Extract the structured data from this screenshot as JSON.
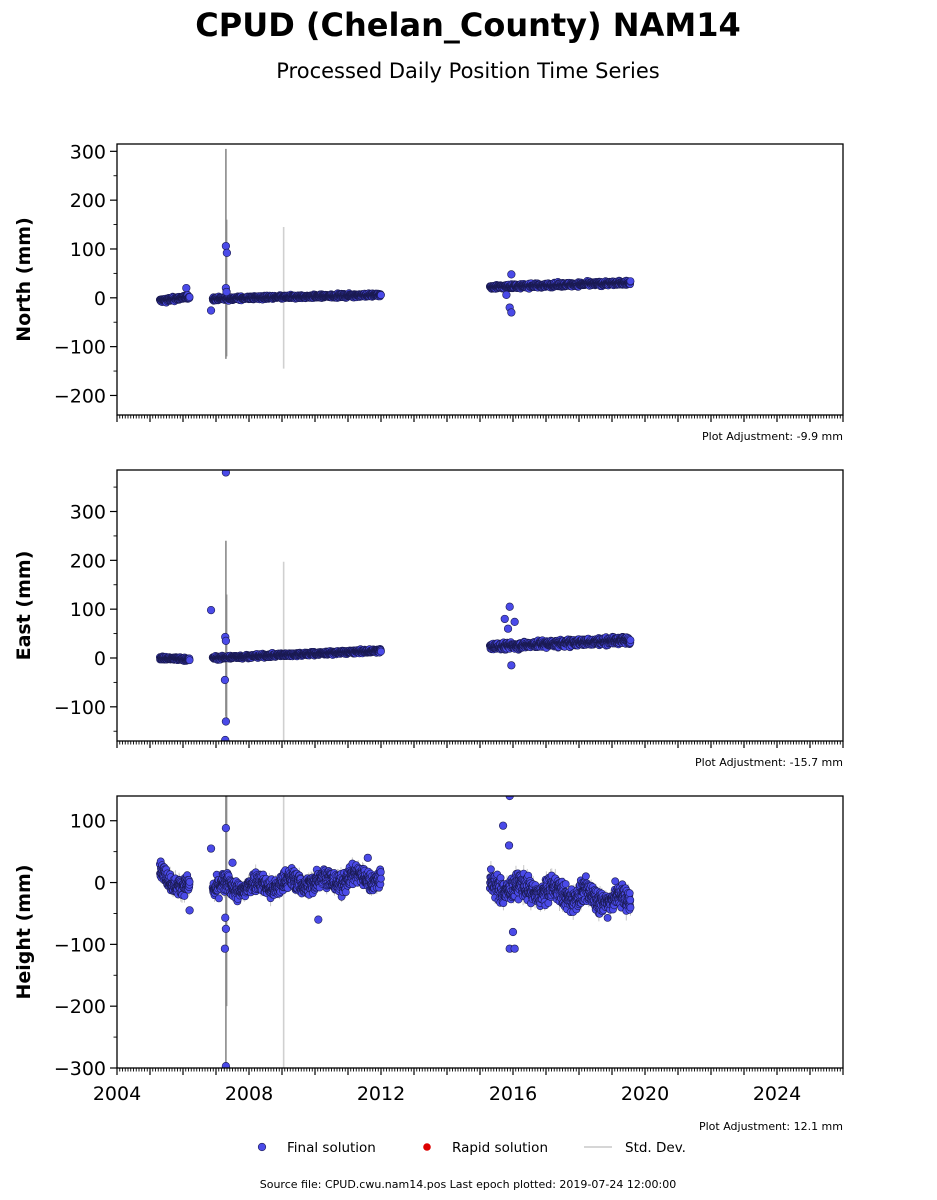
{
  "title": "CPUD (Chelan_County) NAM14",
  "subtitle": "Processed Daily Position Time Series",
  "source_note": "Source file: CPUD.cwu.nam14.pos  Last epoch plotted: 2019-07-24 12:00:00",
  "colors": {
    "final": "#4a4ae8",
    "final_edge": "#1a1a50",
    "rapid": "#dd0000",
    "stddev": "#c8c8c8",
    "axis": "#000000"
  },
  "legend": [
    {
      "label": "Final solution",
      "kind": "final"
    },
    {
      "label": "Rapid solution",
      "kind": "rapid"
    },
    {
      "label": "Std. Dev.",
      "kind": "stddev"
    }
  ],
  "chart_data": [
    {
      "type": "scatter",
      "ylabel": "North (mm)",
      "adjustment": "Plot Adjustment: -9.9 mm",
      "xlim": [
        2004.0,
        2026.0
      ],
      "ylim": [
        -240,
        315
      ],
      "yticks": [
        -200,
        -100,
        0,
        100,
        200,
        300
      ],
      "yticklabels": [
        "−200",
        "−100",
        "0",
        "100",
        "200",
        "300"
      ],
      "show_xticklabels": false,
      "segments": [
        {
          "x": [
            2005.3,
            2006.2
          ],
          "y": [
            -6,
            2
          ],
          "scatter": 3,
          "err": 4
        },
        {
          "x": [
            2006.9,
            2012.0
          ],
          "y": [
            -2,
            6
          ],
          "scatter": 2.5,
          "err": 4
        },
        {
          "x": [
            2015.3,
            2019.56
          ],
          "y": [
            22,
            31
          ],
          "scatter": 3,
          "err": 5
        }
      ],
      "points": [
        {
          "x": 2006.1,
          "y": 20
        },
        {
          "x": 2006.85,
          "y": -26
        },
        {
          "x": 2007.3,
          "y": 106
        },
        {
          "x": 2007.33,
          "y": 92
        },
        {
          "x": 2007.3,
          "y": 20
        },
        {
          "x": 2007.32,
          "y": 12
        },
        {
          "x": 2015.95,
          "y": 48
        },
        {
          "x": 2015.9,
          "y": -20
        },
        {
          "x": 2015.95,
          "y": -30
        },
        {
          "x": 2015.8,
          "y": 6
        }
      ],
      "errorbars": [
        {
          "x": 2007.3,
          "y": 90,
          "err": 215
        },
        {
          "x": 2007.32,
          "y": 20,
          "err": 140
        },
        {
          "x": 2009.05,
          "y": 0,
          "err": 145
        }
      ]
    },
    {
      "type": "scatter",
      "ylabel": "East (mm)",
      "adjustment": "Plot Adjustment: -15.7 mm",
      "xlim": [
        2004.0,
        2026.0
      ],
      "ylim": [
        -170,
        385
      ],
      "yticks": [
        -100,
        0,
        100,
        200,
        300
      ],
      "yticklabels": [
        "−100",
        "0",
        "100",
        "200",
        "300"
      ],
      "show_xticklabels": false,
      "segments": [
        {
          "x": [
            2005.3,
            2006.2
          ],
          "y": [
            0,
            -3
          ],
          "scatter": 2.5,
          "err": 4
        },
        {
          "x": [
            2006.9,
            2012.0
          ],
          "y": [
            0,
            15
          ],
          "scatter": 2.5,
          "err": 4
        },
        {
          "x": [
            2015.3,
            2019.56
          ],
          "y": [
            23,
            37
          ],
          "scatter": 5,
          "err": 5
        }
      ],
      "points": [
        {
          "x": 2006.85,
          "y": 98
        },
        {
          "x": 2007.3,
          "y": 380
        },
        {
          "x": 2007.28,
          "y": 43
        },
        {
          "x": 2007.3,
          "y": 35
        },
        {
          "x": 2007.27,
          "y": -45
        },
        {
          "x": 2007.3,
          "y": -130
        },
        {
          "x": 2007.28,
          "y": -168
        },
        {
          "x": 2015.9,
          "y": 105
        },
        {
          "x": 2015.75,
          "y": 80
        },
        {
          "x": 2016.05,
          "y": 74
        },
        {
          "x": 2015.85,
          "y": 60
        },
        {
          "x": 2015.95,
          "y": -15
        }
      ],
      "errorbars": [
        {
          "x": 2007.3,
          "y": 60,
          "err": 180
        },
        {
          "x": 2007.32,
          "y": 0,
          "err": 130
        },
        {
          "x": 2009.05,
          "y": 12,
          "err": 185
        }
      ]
    },
    {
      "type": "scatter",
      "ylabel": "Height (mm)",
      "adjustment": "Plot Adjustment: 12.1 mm",
      "xlim": [
        2004.0,
        2026.0
      ],
      "ylim": [
        -300,
        140
      ],
      "yticks": [
        -300,
        -200,
        -100,
        0,
        100
      ],
      "yticklabels": [
        "−300",
        "−200",
        "−100",
        "0",
        "100"
      ],
      "show_xticklabels": true,
      "xticks": [
        2004,
        2008,
        2012,
        2016,
        2020,
        2024
      ],
      "xticklabels": [
        "2004",
        "2008",
        "2012",
        "2016",
        "2020",
        "2024"
      ],
      "segments": [
        {
          "x": [
            2005.3,
            2006.2
          ],
          "y": [
            15,
            -10
          ],
          "scatter": 9,
          "err": 12
        },
        {
          "x": [
            2006.9,
            2012.0
          ],
          "y": [
            -10,
            10
          ],
          "scatter": 11,
          "err": 10
        },
        {
          "x": [
            2015.3,
            2019.56
          ],
          "y": [
            -5,
            -30
          ],
          "scatter": 13,
          "err": 12
        }
      ],
      "points": [
        {
          "x": 2006.2,
          "y": -45
        },
        {
          "x": 2006.85,
          "y": 55
        },
        {
          "x": 2007.3,
          "y": 88
        },
        {
          "x": 2007.5,
          "y": 32
        },
        {
          "x": 2007.28,
          "y": -57
        },
        {
          "x": 2007.3,
          "y": -75
        },
        {
          "x": 2007.27,
          "y": -107
        },
        {
          "x": 2007.3,
          "y": -297
        },
        {
          "x": 2010.1,
          "y": -60
        },
        {
          "x": 2011.6,
          "y": 40
        },
        {
          "x": 2015.9,
          "y": 140
        },
        {
          "x": 2015.7,
          "y": 92
        },
        {
          "x": 2015.88,
          "y": 60
        },
        {
          "x": 2015.9,
          "y": -107
        },
        {
          "x": 2016.05,
          "y": -107
        },
        {
          "x": 2016.0,
          "y": -80
        }
      ],
      "errorbars": [
        {
          "x": 2007.3,
          "y": -80,
          "err": 230
        },
        {
          "x": 2007.32,
          "y": 0,
          "err": 200
        },
        {
          "x": 2009.05,
          "y": -80,
          "err": 225
        }
      ]
    }
  ]
}
